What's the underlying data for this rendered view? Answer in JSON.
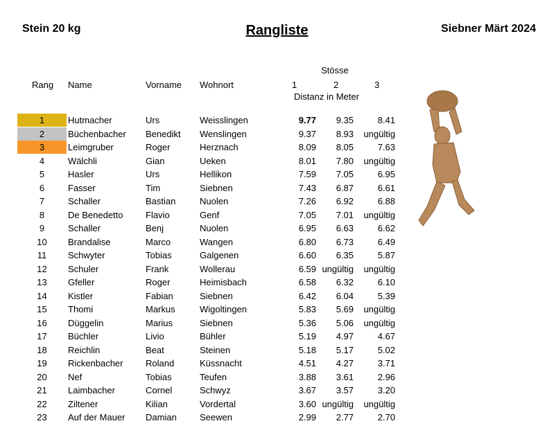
{
  "header": {
    "category": "Stein 20 kg",
    "title": "Rangliste",
    "event": "Siebner Märt 2024"
  },
  "columns": {
    "stoesse": "Stösse",
    "rang": "Rang",
    "name": "Name",
    "vorname": "Vorname",
    "wohnort": "Wohnort",
    "s1": "1",
    "s2": "2",
    "s3": "3",
    "distanz": "Distanz in Meter"
  },
  "medal_colors": {
    "gold": "#DDB316",
    "silver": "#C3C3C3",
    "bronze": "#F8962B"
  },
  "rows": [
    {
      "rang": "1",
      "name": "Hutmacher",
      "vorname": "Urs",
      "wohnort": "Weisslingen",
      "s1": "9.77",
      "s2": "9.35",
      "s3": "8.41"
    },
    {
      "rang": "2",
      "name": "Büchenbacher",
      "vorname": "Benedikt",
      "wohnort": "Wenslingen",
      "s1": "9.37",
      "s2": "8.93",
      "s3": "ungültig"
    },
    {
      "rang": "3",
      "name": "Leimgruber",
      "vorname": "Roger",
      "wohnort": "Herznach",
      "s1": "8.09",
      "s2": "8.05",
      "s3": "7.63"
    },
    {
      "rang": "4",
      "name": "Wälchli",
      "vorname": "Gian",
      "wohnort": "Ueken",
      "s1": "8.01",
      "s2": "7.80",
      "s3": "ungültig"
    },
    {
      "rang": "5",
      "name": "Hasler",
      "vorname": "Urs",
      "wohnort": "Hellikon",
      "s1": "7.59",
      "s2": "7.05",
      "s3": "6.95"
    },
    {
      "rang": "6",
      "name": "Fasser",
      "vorname": "Tim",
      "wohnort": "Siebnen",
      "s1": "7.43",
      "s2": "6.87",
      "s3": "6.61"
    },
    {
      "rang": "7",
      "name": "Schaller",
      "vorname": "Bastian",
      "wohnort": "Nuolen",
      "s1": "7.26",
      "s2": "6.92",
      "s3": "6.88"
    },
    {
      "rang": "8",
      "name": "De Benedetto",
      "vorname": "Flavio",
      "wohnort": "Genf",
      "s1": "7.05",
      "s2": "7.01",
      "s3": "ungültig"
    },
    {
      "rang": "9",
      "name": "Schaller",
      "vorname": "Benj",
      "wohnort": "Nuolen",
      "s1": "6.95",
      "s2": "6.63",
      "s3": "6.62"
    },
    {
      "rang": "10",
      "name": "Brandalise",
      "vorname": "Marco",
      "wohnort": "Wangen",
      "s1": "6.80",
      "s2": "6.73",
      "s3": "6.49"
    },
    {
      "rang": "11",
      "name": "Schwyter",
      "vorname": "Tobias",
      "wohnort": "Galgenen",
      "s1": "6.60",
      "s2": "6.35",
      "s3": "5.87"
    },
    {
      "rang": "12",
      "name": "Schuler",
      "vorname": "Frank",
      "wohnort": "Wollerau",
      "s1": "6.59",
      "s2": "ungültig",
      "s3": "ungültig"
    },
    {
      "rang": "13",
      "name": "Gfeller",
      "vorname": "Roger",
      "wohnort": "Heimisbach",
      "s1": "6.58",
      "s2": "6.32",
      "s3": "6.10"
    },
    {
      "rang": "14",
      "name": "Kistler",
      "vorname": "Fabian",
      "wohnort": "Siebnen",
      "s1": "6.42",
      "s2": "6.04",
      "s3": "5.39"
    },
    {
      "rang": "15",
      "name": "Thomi",
      "vorname": "Markus",
      "wohnort": "Wigoltingen",
      "s1": "5.83",
      "s2": "5.69",
      "s3": "ungültig"
    },
    {
      "rang": "16",
      "name": "Düggelin",
      "vorname": "Marius",
      "wohnort": "Siebnen",
      "s1": "5.36",
      "s2": "5.06",
      "s3": "ungültig"
    },
    {
      "rang": "17",
      "name": "Büchler",
      "vorname": "Livio",
      "wohnort": "Bühler",
      "s1": "5.19",
      "s2": "4.97",
      "s3": "4.67"
    },
    {
      "rang": "18",
      "name": "Reichlin",
      "vorname": "Beat",
      "wohnort": "Steinen",
      "s1": "5.18",
      "s2": "5.17",
      "s3": "5.02"
    },
    {
      "rang": "19",
      "name": "Rickenbacher",
      "vorname": "Roland",
      "wohnort": "Küssnacht",
      "s1": "4.51",
      "s2": "4.27",
      "s3": "3.71"
    },
    {
      "rang": "20",
      "name": "Nef",
      "vorname": "Tobias",
      "wohnort": "Teufen",
      "s1": "3.88",
      "s2": "3.61",
      "s3": "2.96"
    },
    {
      "rang": "21",
      "name": "Laimbacher",
      "vorname": "Cornel",
      "wohnort": "Schwyz",
      "s1": "3.67",
      "s2": "3.57",
      "s3": "3.20"
    },
    {
      "rang": "22",
      "name": "Ziltener",
      "vorname": "Kilian",
      "wohnort": "Vordertal",
      "s1": "3.60",
      "s2": "ungültig",
      "s3": "ungültig"
    },
    {
      "rang": "23",
      "name": "Auf der Mauer",
      "vorname": "Damian",
      "wohnort": "Seewen",
      "s1": "2.99",
      "s2": "2.77",
      "s3": "2.70"
    }
  ]
}
